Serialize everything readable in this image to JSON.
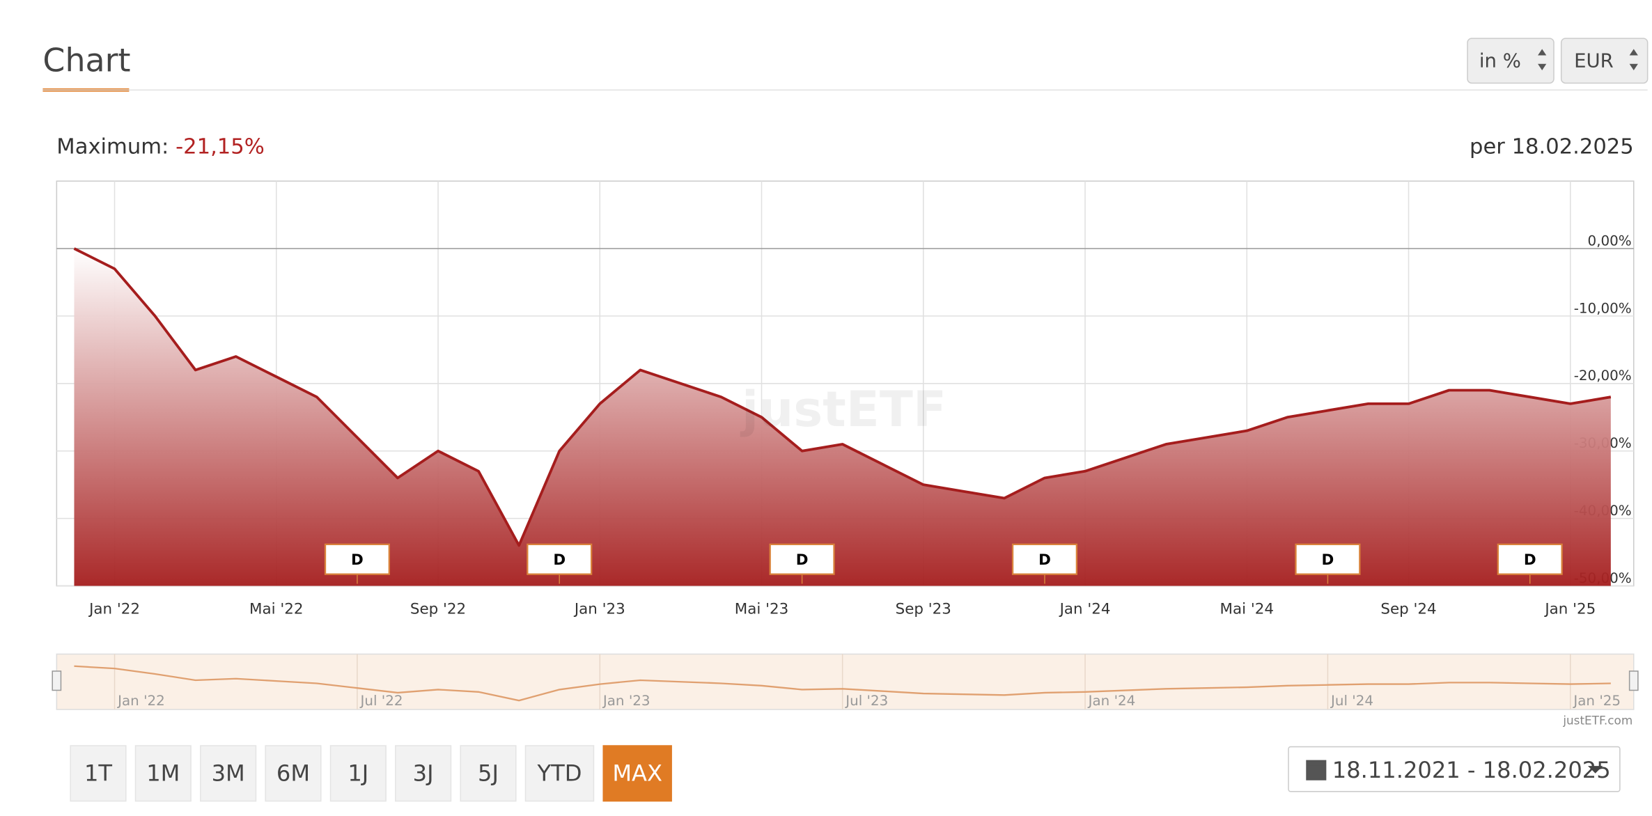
{
  "header": {
    "title": "Chart",
    "unit_select": "in %",
    "currency_select": "EUR"
  },
  "summary": {
    "label": "Maximum:",
    "value": "-21,15%",
    "as_of": "per 18.02.2025"
  },
  "chart_data": {
    "type": "line",
    "xlim": [
      "2021-11-18",
      "2025-02-18"
    ],
    "ylim": [
      -50,
      10
    ],
    "yticks": [
      {
        "value": 0,
        "label": "0,00%"
      },
      {
        "value": -10,
        "label": "-10,00%"
      },
      {
        "value": -20,
        "label": "-20,00%"
      },
      {
        "value": -30,
        "label": "-30,00%"
      },
      {
        "value": -40,
        "label": "-40,00%"
      },
      {
        "value": -50,
        "label": "-50,00%"
      }
    ],
    "xticks": [
      {
        "value": "2022-01",
        "label": "Jan '22"
      },
      {
        "value": "2022-05",
        "label": "Mai '22"
      },
      {
        "value": "2022-09",
        "label": "Sep '22"
      },
      {
        "value": "2023-01",
        "label": "Jan '23"
      },
      {
        "value": "2023-05",
        "label": "Mai '23"
      },
      {
        "value": "2023-09",
        "label": "Sep '23"
      },
      {
        "value": "2024-01",
        "label": "Jan '24"
      },
      {
        "value": "2024-05",
        "label": "Mai '24"
      },
      {
        "value": "2024-09",
        "label": "Sep '24"
      },
      {
        "value": "2025-01",
        "label": "Jan '25"
      }
    ],
    "x": [
      "2021-12",
      "2022-01",
      "2022-02",
      "2022-03",
      "2022-04",
      "2022-05",
      "2022-06",
      "2022-07",
      "2022-08",
      "2022-09",
      "2022-10",
      "2022-11",
      "2022-12",
      "2023-01",
      "2023-02",
      "2023-03",
      "2023-04",
      "2023-05",
      "2023-06",
      "2023-07",
      "2023-08",
      "2023-09",
      "2023-10",
      "2023-11",
      "2023-12",
      "2024-01",
      "2024-02",
      "2024-03",
      "2024-04",
      "2024-05",
      "2024-06",
      "2024-07",
      "2024-08",
      "2024-09",
      "2024-10",
      "2024-11",
      "2024-12",
      "2025-01",
      "2025-02"
    ],
    "series": [
      {
        "color": "#a51d1d",
        "values": [
          0,
          -3,
          -10,
          -18,
          -16,
          -19,
          -22,
          -28,
          -34,
          -30,
          -33,
          -44,
          -30,
          -23,
          -18,
          -20,
          -22,
          -25,
          -30,
          -29,
          -32,
          -35,
          -36,
          -37,
          -34,
          -33,
          -31,
          -29,
          -28,
          -27,
          -25,
          -24,
          -23,
          -23,
          -21,
          -21,
          -22,
          -23,
          -22
        ]
      }
    ],
    "markers": [
      {
        "label": "D",
        "x": "2022-07"
      },
      {
        "label": "D",
        "x": "2022-12"
      },
      {
        "label": "D",
        "x": "2023-06"
      },
      {
        "label": "D",
        "x": "2023-12"
      },
      {
        "label": "D",
        "x": "2024-07"
      },
      {
        "label": "D",
        "x": "2024-12"
      }
    ],
    "navigator_xticks": [
      {
        "value": "2022-01",
        "label": "Jan '22"
      },
      {
        "value": "2022-07",
        "label": "Jul '22"
      },
      {
        "value": "2023-01",
        "label": "Jan '23"
      },
      {
        "value": "2023-07",
        "label": "Jul '23"
      },
      {
        "value": "2024-01",
        "label": "Jan '24"
      },
      {
        "value": "2024-07",
        "label": "Jul '24"
      },
      {
        "value": "2025-01",
        "label": "Jan '25"
      }
    ],
    "watermark": "justETF",
    "credit": "justETF.com"
  },
  "periods": [
    "1T",
    "1M",
    "3M",
    "6M",
    "1J",
    "3J",
    "5J",
    "YTD",
    "MAX"
  ],
  "active_period": 8,
  "date_range": "18.11.2021 - 18.02.2025"
}
